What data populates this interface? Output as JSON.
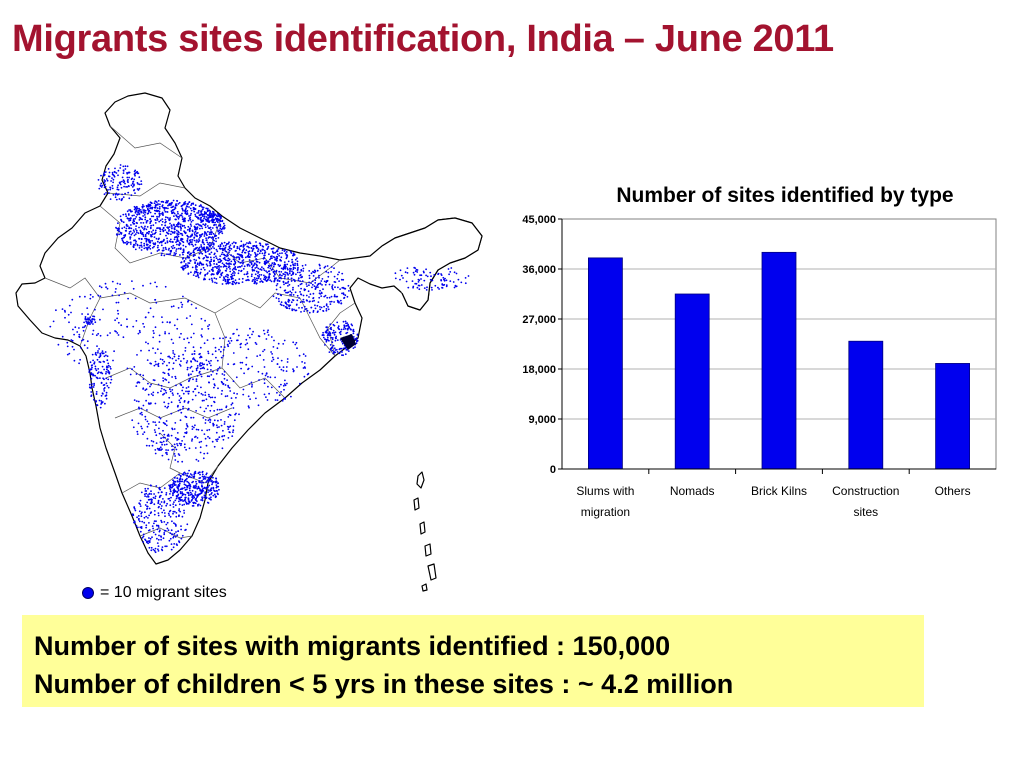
{
  "slide": {
    "title": "Migrants sites identification, India – June 2011"
  },
  "map": {
    "dot_color": "#0000ee",
    "legend_label": "= 10 migrant sites"
  },
  "chart_data": {
    "type": "bar",
    "title": "Number of sites identified by type",
    "categories": [
      "Slums with migration",
      "Nomads",
      "Brick Kilns",
      "Construction sites",
      "Others"
    ],
    "category_lines": [
      [
        "Slums with",
        "migration"
      ],
      [
        "Nomads"
      ],
      [
        "Brick Kilns"
      ],
      [
        "Construction",
        "sites"
      ],
      [
        "Others"
      ]
    ],
    "values": [
      38000,
      31500,
      39000,
      23000,
      19000
    ],
    "ylim": [
      0,
      45000
    ],
    "yticks": [
      0,
      9000,
      18000,
      27000,
      36000,
      45000
    ],
    "ytick_labels": [
      "0",
      "9,000",
      "18,000",
      "27,000",
      "36,000",
      "45,000"
    ],
    "bar_color": "#0000ee",
    "grid": true,
    "xlabel": "",
    "ylabel": ""
  },
  "summary": {
    "line1": "Number of sites with migrants identified : 150,000",
    "line2": "Number of children < 5 yrs in these sites : ~ 4.2 million"
  }
}
